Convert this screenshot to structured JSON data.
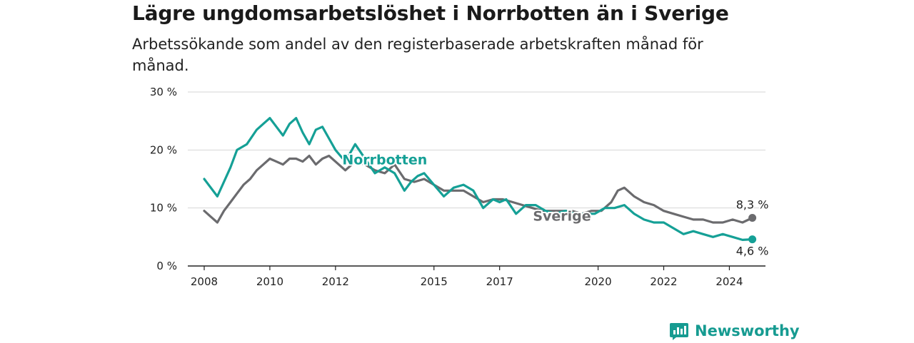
{
  "title": "Lägre ungdomsarbetslöshet i Norrbotten än i Sverige",
  "subtitle": "Arbetssökande som andel av den registerbaserade arbetskraften månad för månad.",
  "brand": {
    "name": "Newsworthy",
    "icon": "newsworthy-logo-icon",
    "color": "#169b91"
  },
  "chart_data": {
    "type": "line",
    "title": "Lägre ungdomsarbetslöshet i Norrbotten än i Sverige",
    "subtitle": "Arbetssökande som andel av den registerbaserade arbetskraften månad för månad.",
    "xlabel": "",
    "ylabel": "",
    "x_ticks": [
      "2008",
      "2010",
      "2012",
      "2015",
      "2017",
      "2020",
      "2022",
      "2024"
    ],
    "x_tick_values": [
      2008.0,
      2010.0,
      2012.0,
      2015.0,
      2017.0,
      2020.0,
      2022.0,
      2024.0
    ],
    "y_ticks": [
      "0 %",
      "10 %",
      "20 %",
      "30 %"
    ],
    "y_tick_values": [
      0,
      10,
      20,
      30
    ],
    "ylim": [
      0,
      30
    ],
    "grid": true,
    "series": [
      {
        "name": "Norrbotten",
        "color": "#15a096",
        "end_label": "4,6 %",
        "x": [
          2008.0,
          2008.4,
          2008.8,
          2009.0,
          2009.3,
          2009.6,
          2009.8,
          2010.0,
          2010.2,
          2010.4,
          2010.6,
          2010.8,
          2011.0,
          2011.2,
          2011.4,
          2011.6,
          2011.8,
          2012.0,
          2012.3,
          2012.6,
          2012.9,
          2013.2,
          2013.5,
          2013.8,
          2014.1,
          2014.3,
          2014.5,
          2014.7,
          2015.0,
          2015.3,
          2015.6,
          2015.9,
          2016.2,
          2016.5,
          2016.8,
          2017.0,
          2017.2,
          2017.5,
          2017.8,
          2018.1,
          2018.4,
          2018.7,
          2019.0,
          2019.3,
          2019.6,
          2019.9,
          2020.2,
          2020.5,
          2020.8,
          2021.1,
          2021.4,
          2021.7,
          2022.0,
          2022.3,
          2022.6,
          2022.9,
          2023.2,
          2023.5,
          2023.8,
          2024.1,
          2024.4,
          2024.7
        ],
        "y": [
          15.0,
          12.0,
          17.0,
          20.0,
          21.0,
          23.5,
          24.5,
          25.5,
          24.0,
          22.5,
          24.5,
          25.5,
          23.0,
          21.0,
          23.5,
          24.0,
          22.0,
          20.0,
          18.0,
          21.0,
          18.5,
          16.0,
          17.0,
          16.0,
          13.0,
          14.5,
          15.5,
          16.0,
          14.0,
          12.0,
          13.5,
          14.0,
          13.0,
          10.0,
          11.5,
          11.0,
          11.5,
          9.0,
          10.5,
          10.5,
          9.5,
          9.0,
          9.5,
          9.0,
          9.0,
          9.0,
          10.0,
          10.0,
          10.5,
          9.0,
          8.0,
          7.5,
          7.5,
          6.5,
          5.5,
          6.0,
          5.5,
          5.0,
          5.5,
          5.0,
          4.5,
          4.6
        ]
      },
      {
        "name": "Sverige",
        "color": "#6b6b6e",
        "end_label": "8,3 %",
        "x": [
          2008.0,
          2008.2,
          2008.4,
          2008.6,
          2008.8,
          2009.0,
          2009.2,
          2009.4,
          2009.6,
          2009.8,
          2010.0,
          2010.2,
          2010.4,
          2010.6,
          2010.8,
          2011.0,
          2011.2,
          2011.4,
          2011.6,
          2011.8,
          2012.0,
          2012.3,
          2012.6,
          2012.9,
          2013.2,
          2013.5,
          2013.8,
          2014.1,
          2014.4,
          2014.7,
          2015.0,
          2015.3,
          2015.6,
          2015.9,
          2016.2,
          2016.5,
          2016.8,
          2017.1,
          2017.4,
          2017.7,
          2018.0,
          2018.3,
          2018.6,
          2018.9,
          2019.2,
          2019.5,
          2019.8,
          2020.1,
          2020.4,
          2020.6,
          2020.8,
          2021.1,
          2021.4,
          2021.7,
          2022.0,
          2022.3,
          2022.6,
          2022.9,
          2023.2,
          2023.5,
          2023.8,
          2024.1,
          2024.4,
          2024.7
        ],
        "y": [
          9.5,
          8.5,
          7.5,
          9.5,
          11.0,
          12.5,
          14.0,
          15.0,
          16.5,
          17.5,
          18.5,
          18.0,
          17.5,
          18.5,
          18.5,
          18.0,
          19.0,
          17.5,
          18.5,
          19.0,
          18.0,
          16.5,
          18.0,
          17.5,
          16.5,
          16.0,
          17.5,
          15.0,
          14.5,
          15.0,
          14.0,
          13.0,
          13.0,
          13.0,
          12.0,
          11.0,
          11.5,
          11.5,
          11.0,
          10.5,
          10.0,
          9.5,
          9.5,
          9.5,
          9.5,
          9.0,
          9.5,
          9.5,
          11.0,
          13.0,
          13.5,
          12.0,
          11.0,
          10.5,
          9.5,
          9.0,
          8.5,
          8.0,
          8.0,
          7.5,
          7.5,
          8.0,
          7.5,
          8.3
        ]
      }
    ]
  }
}
